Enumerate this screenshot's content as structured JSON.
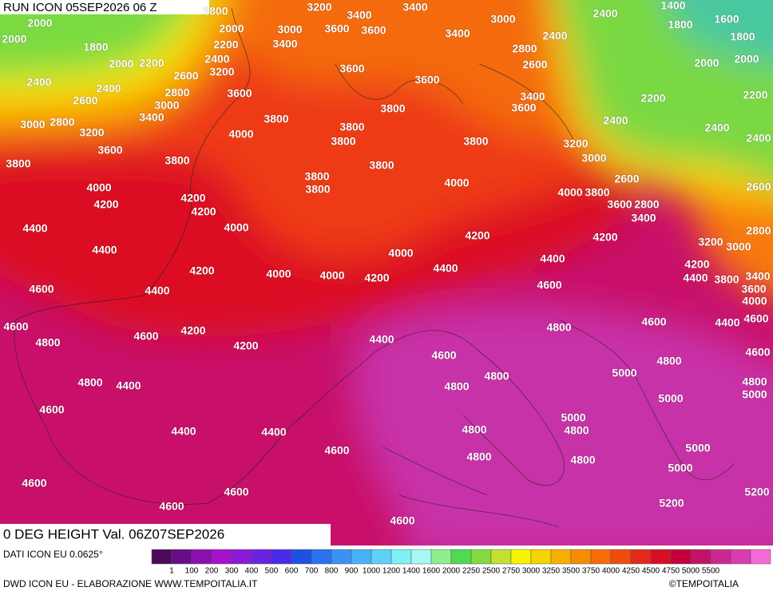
{
  "header": {
    "title": "RUN ICON 05SEP2026 06 Z"
  },
  "map": {
    "field": "0 DEG HEIGHT Val. 06Z07SEP2026",
    "labels": [
      "2000",
      "1800",
      "3200",
      "3400",
      "3400",
      "3000",
      "2400",
      "1400",
      "1600",
      "2000",
      "1800",
      "2000",
      "3000",
      "3600",
      "3600",
      "3400",
      "2400",
      "1800",
      "1800",
      "2200",
      "3400",
      "2800",
      "2400",
      "2000",
      "2200",
      "3200",
      "3600",
      "2600",
      "2000",
      "2000",
      "2600",
      "3600",
      "2400",
      "2400",
      "2800",
      "3600",
      "3400",
      "2200",
      "2200",
      "2600",
      "3000",
      "3800",
      "3600",
      "3400",
      "3800",
      "3000",
      "2800",
      "3800",
      "2400",
      "2400",
      "3200",
      "4000",
      "3800",
      "3800",
      "3200",
      "2400",
      "3600",
      "3800",
      "3000",
      "3800",
      "3800",
      "3800",
      "2600",
      "4000",
      "4000",
      "3800",
      "2600",
      "4000",
      "3800",
      "4200",
      "4200",
      "3600",
      "2800",
      "4200",
      "3400",
      "4400",
      "4000",
      "2800",
      "4200",
      "4200",
      "3200",
      "3000",
      "4400",
      "4000",
      "4400",
      "4200",
      "4200",
      "4000",
      "4000",
      "4200",
      "4400",
      "3400",
      "4400",
      "3800",
      "4600",
      "4600",
      "4400",
      "3600",
      "4000",
      "4600",
      "4200",
      "4600",
      "4800",
      "4600",
      "4400",
      "4600",
      "4800",
      "4200",
      "4400",
      "4600",
      "4600",
      "4800",
      "5000",
      "4800",
      "4800",
      "4400",
      "4800",
      "4800",
      "5000",
      "5000",
      "4600",
      "5000",
      "4800",
      "4400",
      "4400",
      "4800",
      "4600",
      "5000",
      "4800",
      "4800",
      "5000",
      "4600",
      "4600",
      "5200",
      "5200",
      "4600",
      "4600"
    ]
  },
  "footer": {
    "source": "DATI ICON EU 0.0625°",
    "credit": "DWD ICON EU - ELABORAZIONE WWW.TEMPOITALIA.IT",
    "copyright": "©TEMPOITALIA"
  },
  "colorbar": {
    "labels": [
      "1",
      "100",
      "200",
      "300",
      "400",
      "500",
      "600",
      "700",
      "800",
      "900",
      "1000",
      "1200",
      "1400",
      "1600",
      "2000",
      "2250",
      "2500",
      "2750",
      "3000",
      "3250",
      "3500",
      "3750",
      "4000",
      "4250",
      "4500",
      "4750",
      "5000",
      "5500"
    ],
    "colors": [
      "#4a0a5a",
      "#6a0c88",
      "#8a10b0",
      "#a412cc",
      "#8a1ad8",
      "#6a22e2",
      "#4a2aea",
      "#2050e2",
      "#2a72f0",
      "#3a92f4",
      "#48b2f8",
      "#5cd2f8",
      "#7ef0f8",
      "#a8f8f4",
      "#90ee90",
      "#52d852",
      "#84da40",
      "#c4e030",
      "#f8f400",
      "#f8d400",
      "#f8ae00",
      "#f88c00",
      "#f86c08",
      "#f04c10",
      "#e42a1c",
      "#d80e24",
      "#c4003c",
      "#c4126a",
      "#cc2892",
      "#d83cb0",
      "#f46ad8"
    ]
  }
}
